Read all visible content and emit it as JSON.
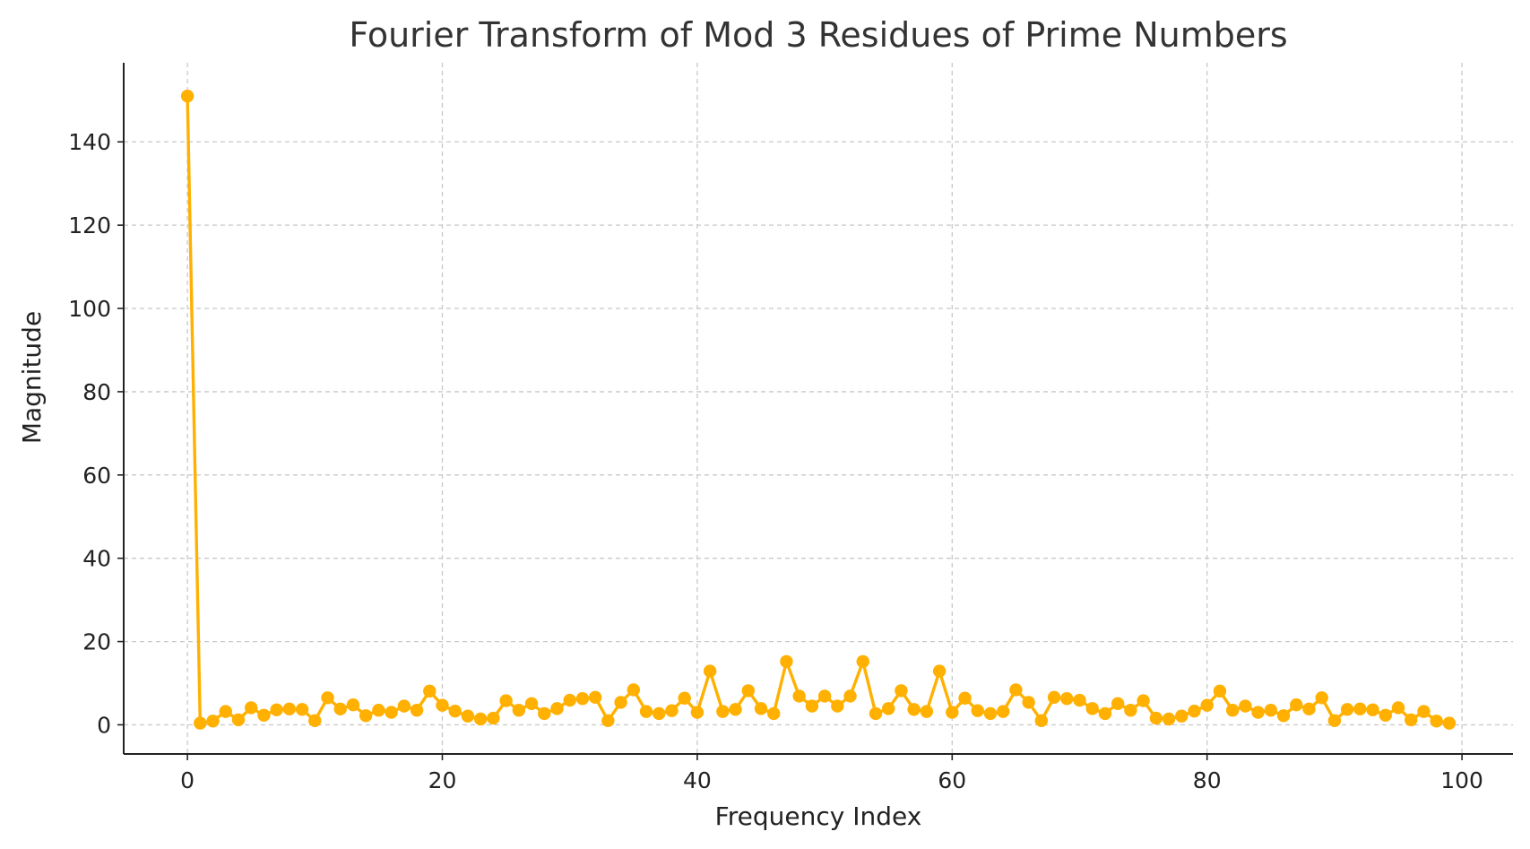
{
  "chart_data": {
    "type": "line",
    "title": "Fourier Transform of Mod 3 Residues of Prime Numbers",
    "xlabel": "Frequency Index",
    "ylabel": "Magnitude",
    "xlim": [
      -5,
      104
    ],
    "ylim": [
      -7,
      159
    ],
    "xticks": [
      0,
      20,
      40,
      60,
      80,
      100
    ],
    "yticks": [
      0,
      20,
      40,
      60,
      80,
      100,
      120,
      140
    ],
    "xtick_labels": [
      "0",
      "20",
      "40",
      "60",
      "80",
      "100"
    ],
    "ytick_labels": [
      "0",
      "20",
      "40",
      "60",
      "80",
      "100",
      "120",
      "140"
    ],
    "grid": true,
    "grid_style": "dashed",
    "marker": "circle",
    "series": [
      {
        "color": "#FFB000",
        "x": [
          0,
          1,
          2,
          3,
          4,
          5,
          6,
          7,
          8,
          9,
          10,
          11,
          12,
          13,
          14,
          15,
          16,
          17,
          18,
          19,
          20,
          21,
          22,
          23,
          24,
          25,
          26,
          27,
          28,
          29,
          30,
          31,
          32,
          33,
          34,
          35,
          36,
          37,
          38,
          39,
          40,
          41,
          42,
          43,
          44,
          45,
          46,
          47,
          48,
          49,
          50,
          51,
          52,
          53,
          54,
          55,
          56,
          57,
          58,
          59,
          60,
          61,
          62,
          63,
          64,
          65,
          66,
          67,
          68,
          69,
          70,
          71,
          72,
          73,
          74,
          75,
          76,
          77,
          78,
          79,
          80,
          81,
          82,
          83,
          84,
          85,
          86,
          87,
          88,
          89,
          90,
          91,
          92,
          93,
          94,
          95,
          96,
          97,
          98,
          99
        ],
        "values": [
          151,
          0.4,
          0.9,
          3.2,
          1.2,
          4.1,
          2.3,
          3.6,
          3.8,
          3.7,
          1,
          6.5,
          3.8,
          4.8,
          2.2,
          3.5,
          3,
          4.5,
          3.5,
          8.1,
          4.7,
          3.3,
          2.1,
          1.4,
          1.6,
          5.8,
          3.5,
          5.1,
          2.7,
          3.9,
          5.9,
          6.3,
          6.6,
          1,
          5.4,
          8.4,
          3.2,
          2.7,
          3.4,
          6.4,
          3,
          12.9,
          3.2,
          3.7,
          8.2,
          3.9,
          2.7,
          15.2,
          6.9,
          4.5,
          6.9,
          4.5,
          6.9,
          15.2,
          2.7,
          3.9,
          8.2,
          3.7,
          3.2,
          12.9,
          3,
          6.4,
          3.4,
          2.7,
          3.2,
          8.4,
          5.4,
          1,
          6.6,
          6.3,
          5.9,
          3.9,
          2.7,
          5.1,
          3.5,
          5.8,
          1.6,
          1.4,
          2.1,
          3.3,
          4.7,
          8.1,
          3.5,
          4.5,
          3,
          3.5,
          2.2,
          4.8,
          3.8,
          6.5,
          1,
          3.7,
          3.8,
          3.6,
          2.3,
          4.1,
          1.2,
          3.2,
          0.9,
          0.4
        ]
      }
    ]
  }
}
